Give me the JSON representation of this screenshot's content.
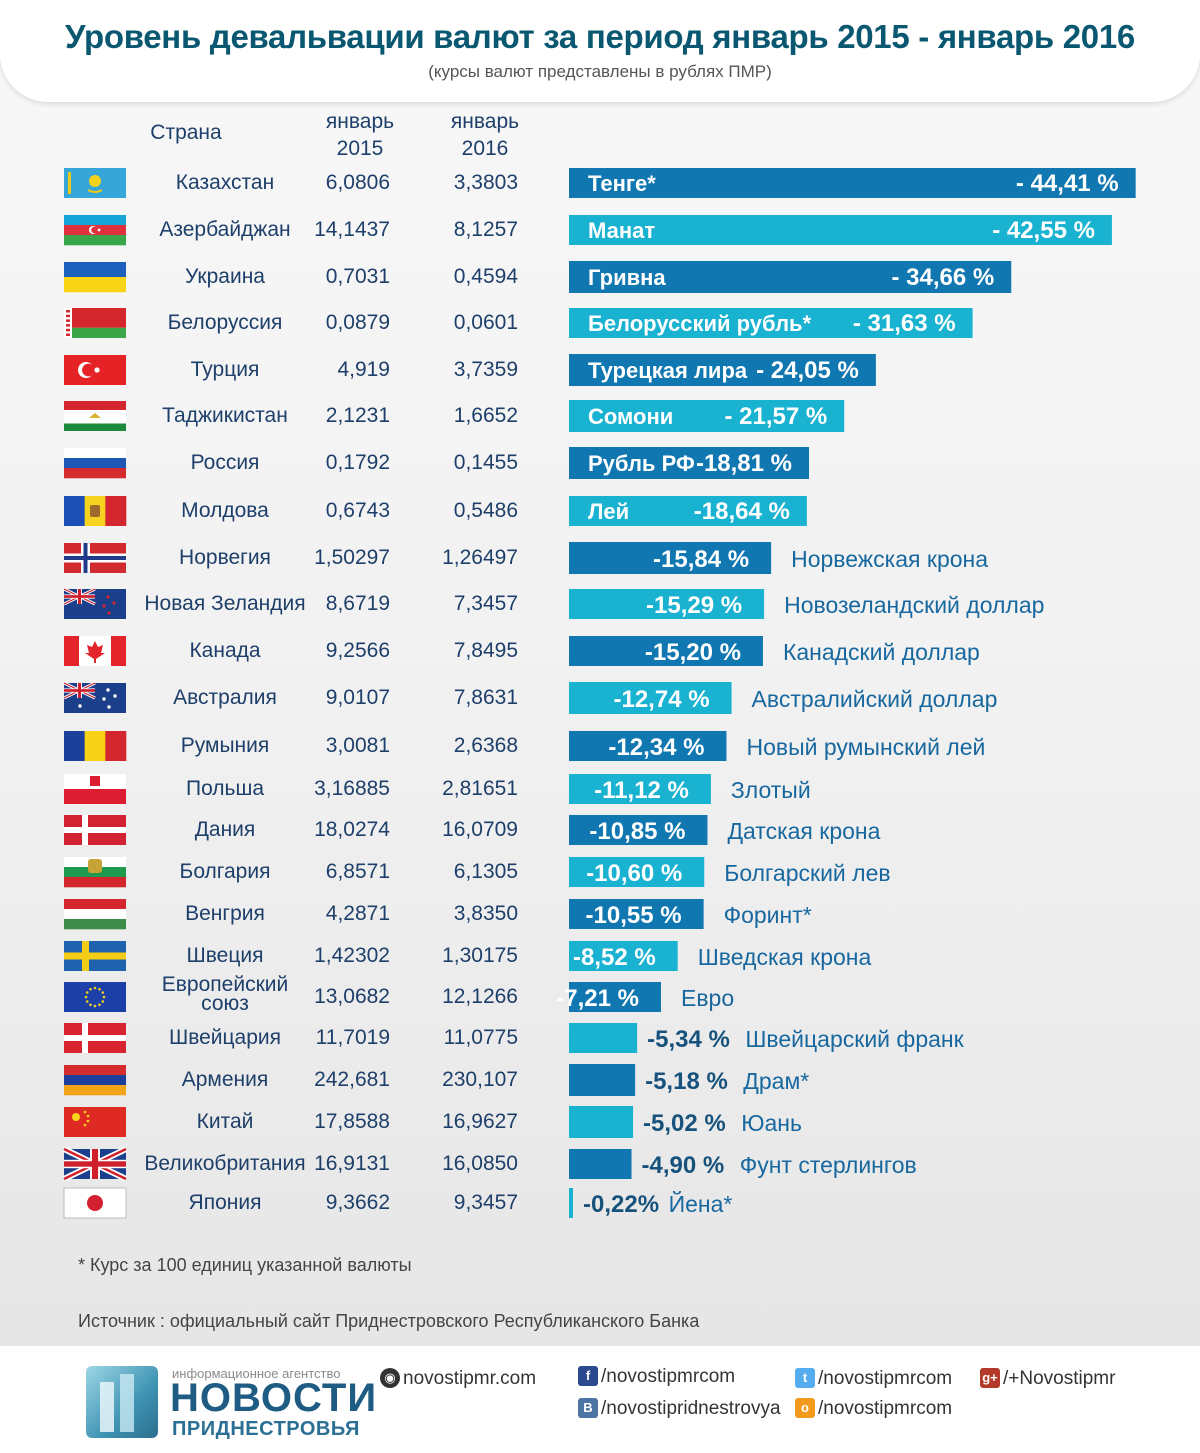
{
  "header": {
    "title": "Уровень девальвации валют за период январь 2015 - январь 2016",
    "subtitle": "(курсы валют представлены в рублях ПМР)"
  },
  "columns": {
    "country": "Страна",
    "jan2015": "январь\n2015",
    "jan2016": "январь\n2016"
  },
  "colors": {
    "dark": "#1177b1",
    "light": "#1ab2d1"
  },
  "chart_data": {
    "type": "bar",
    "orientation": "horizontal",
    "unit": "%",
    "rows": [
      {
        "flag": "kazakhstan-flag",
        "country": "Казахстан",
        "jan2015": "6,0806",
        "jan2016": "3,3803",
        "currency": "Тенге*",
        "label": "- 44,41 %",
        "value": -44.41,
        "style": "in"
      },
      {
        "flag": "azerbaijan-flag",
        "country": "Азербайджан",
        "jan2015": "14,1437",
        "jan2016": "8,1257",
        "currency": "Манат",
        "label": "- 42,55 %",
        "value": -42.55,
        "style": "in"
      },
      {
        "flag": "ukraine-flag",
        "country": "Украина",
        "jan2015": "0,7031",
        "jan2016": "0,4594",
        "currency": "Гривна",
        "label": "- 34,66 %",
        "value": -34.66,
        "style": "in"
      },
      {
        "flag": "belarus-flag",
        "country": "Белоруссия",
        "jan2015": "0,0879",
        "jan2016": "0,0601",
        "currency": "Белорусский рубль*",
        "label": "- 31,63 %",
        "value": -31.63,
        "style": "in"
      },
      {
        "flag": "turkey-flag",
        "country": "Турция",
        "jan2015": "4,919",
        "jan2016": "3,7359",
        "currency": "Турецкая лира",
        "label": "- 24,05 %",
        "value": -24.05,
        "style": "in"
      },
      {
        "flag": "tajikistan-flag",
        "country": "Таджикистан",
        "jan2015": "2,1231",
        "jan2016": "1,6652",
        "currency": "Сомони",
        "label": "- 21,57 %",
        "value": -21.57,
        "style": "in"
      },
      {
        "flag": "russia-flag",
        "country": "Россия",
        "jan2015": "0,1792",
        "jan2016": "0,1455",
        "currency": "Рубль РФ",
        "label": "-18,81 %",
        "value": -18.81,
        "style": "in"
      },
      {
        "flag": "moldova-flag",
        "country": "Молдова",
        "jan2015": "0,6743",
        "jan2016": "0,5486",
        "currency": "Лей",
        "label": "-18,64 %",
        "value": -18.64,
        "style": "in"
      },
      {
        "flag": "norway-flag",
        "country": "Норвегия",
        "jan2015": "1,50297",
        "jan2016": "1,26497",
        "currency": "Норвежская крона",
        "label": "-15,84 %",
        "value": -15.84,
        "style": "mid"
      },
      {
        "flag": "new-zealand-flag",
        "country": "Новая Зеландия",
        "jan2015": "8,6719",
        "jan2016": "7,3457",
        "currency": "Новозеландский доллар",
        "label": "-15,29 %",
        "value": -15.29,
        "style": "mid"
      },
      {
        "flag": "canada-flag",
        "country": "Канада",
        "jan2015": "9,2566",
        "jan2016": "7,8495",
        "currency": "Канадский доллар",
        "label": "-15,20 %",
        "value": -15.2,
        "style": "mid"
      },
      {
        "flag": "australia-flag",
        "country": "Австралия",
        "jan2015": "9,0107",
        "jan2016": "7,8631",
        "currency": "Австралийский доллар",
        "label": "-12,74 %",
        "value": -12.74,
        "style": "mid"
      },
      {
        "flag": "romania-flag",
        "country": "Румыния",
        "jan2015": "3,0081",
        "jan2016": "2,6368",
        "currency": "Новый румынский лей",
        "label": "-12,34 %",
        "value": -12.34,
        "style": "mid"
      },
      {
        "flag": "poland-flag",
        "country": "Польша",
        "jan2015": "3,16885",
        "jan2016": "2,81651",
        "currency": "Злотый",
        "label": "-11,12 %",
        "value": -11.12,
        "style": "mid"
      },
      {
        "flag": "denmark-flag",
        "country": "Дания",
        "jan2015": "18,0274",
        "jan2016": "16,0709",
        "currency": "Датская крона",
        "label": "-10,85 %",
        "value": -10.85,
        "style": "mid"
      },
      {
        "flag": "bulgaria-flag",
        "country": "Болгария",
        "jan2015": "6,8571",
        "jan2016": "6,1305",
        "currency": "Болгарский лев",
        "label": "-10,60 %",
        "value": -10.6,
        "style": "mid"
      },
      {
        "flag": "hungary-flag",
        "country": "Венгрия",
        "jan2015": "4,2871",
        "jan2016": "3,8350",
        "currency": "Форинт*",
        "label": "-10,55 %",
        "value": -10.55,
        "style": "mid"
      },
      {
        "flag": "sweden-flag",
        "country": "Швеция",
        "jan2015": "1,42302",
        "jan2016": "1,30175",
        "currency": "Шведская крона",
        "label": "-8,52 %",
        "value": -8.52,
        "style": "mid"
      },
      {
        "flag": "eu-flag",
        "country": "Европейский\nсоюз",
        "jan2015": "13,0682",
        "jan2016": "12,1266",
        "currency": "Евро",
        "label": "-7,21 %",
        "value": -7.21,
        "style": "mid"
      },
      {
        "flag": "switzerland-flag",
        "country": "Швейцария",
        "jan2015": "11,7019",
        "jan2016": "11,0775",
        "currency": "Швейцарский франк",
        "label": "-5,34 %",
        "value": -5.34,
        "style": "out"
      },
      {
        "flag": "armenia-flag",
        "country": "Армения",
        "jan2015": "242,681",
        "jan2016": "230,107",
        "currency": "Драм*",
        "label": "-5,18 %",
        "value": -5.18,
        "style": "out"
      },
      {
        "flag": "china-flag",
        "country": "Китай",
        "jan2015": "17,8588",
        "jan2016": "16,9627",
        "currency": "Юань",
        "label": "-5,02 %",
        "value": -5.02,
        "style": "out"
      },
      {
        "flag": "uk-flag",
        "country": "Великобритания",
        "jan2015": "16,9131",
        "jan2016": "16,0850",
        "currency": "Фунт стерлингов",
        "label": "-4,90 %",
        "value": -4.9,
        "style": "out"
      },
      {
        "flag": "japan-flag",
        "country": "Япония",
        "jan2015": "9,3662",
        "jan2016": "9,3457",
        "currency": "Йена*",
        "label": "-0,22%",
        "value": -0.22,
        "style": "out"
      }
    ]
  },
  "footnote": "* Курс за 100 единиц указанной валюты",
  "source": "Источник : официальный сайт Приднестровского Республиканского Банка",
  "footer": {
    "logo_small": "информационное агентство",
    "logo_big": "НОВОСТИ",
    "logo_sub": "ПРИДНЕСТРОВЬЯ",
    "website": "novostipmr.com",
    "facebook": "/novostipmrcom",
    "vk": "/novostipridnestrovya",
    "twitter": "/novostipmrcom",
    "odnoklassniki": "/novostipmrcom",
    "gplus": "/+Novostipmr"
  }
}
